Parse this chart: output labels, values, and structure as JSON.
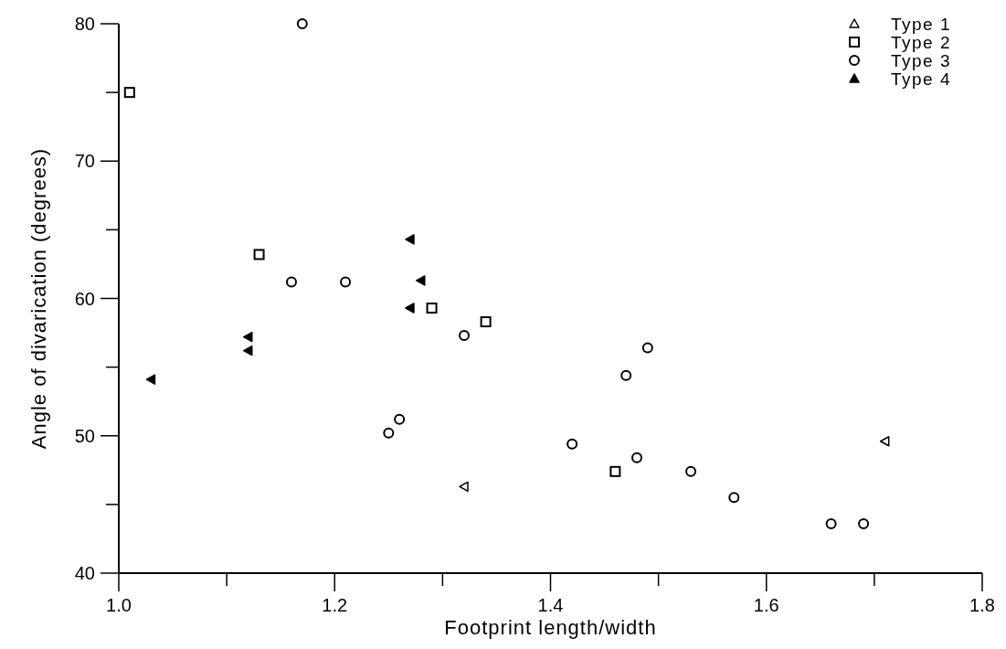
{
  "chart_data": {
    "type": "scatter",
    "xlabel": "Footprint length/width",
    "ylabel": "Angle of divarication (degrees)",
    "xlim": [
      1.0,
      1.8
    ],
    "ylim": [
      40,
      80
    ],
    "xticks": [
      {
        "value": 1.0,
        "label": "1.0"
      },
      {
        "value": 1.1,
        "label": null
      },
      {
        "value": 1.2,
        "label": "1.2"
      },
      {
        "value": 1.3,
        "label": null
      },
      {
        "value": 1.4,
        "label": "1.4"
      },
      {
        "value": 1.5,
        "label": null
      },
      {
        "value": 1.6,
        "label": "1.6"
      },
      {
        "value": 1.7,
        "label": null
      },
      {
        "value": 1.8,
        "label": "1.8"
      }
    ],
    "yticks": [
      40,
      {
        "value": 45,
        "label": null
      },
      50,
      {
        "value": 55,
        "label": null
      },
      60,
      {
        "value": 65,
        "label": null
      },
      70,
      {
        "value": 75,
        "label": null
      },
      80
    ],
    "grid": false,
    "legend": "top right",
    "series": [
      {
        "name": "Type 1",
        "color": "#000000",
        "marker": "triangle",
        "x": [
          1.32,
          1.71
        ],
        "values": [
          46.3,
          49.6
        ]
      },
      {
        "name": "Type 2",
        "color": "#000000",
        "marker": "square",
        "x": [
          1.01,
          1.13,
          1.29,
          1.34,
          1.46
        ],
        "values": [
          75,
          63.2,
          59.3,
          58.3,
          47.4
        ]
      },
      {
        "name": "Type 3",
        "color": "#000000",
        "marker": "circle",
        "x": [
          1.17,
          1.16,
          1.21,
          1.32,
          1.25,
          1.26,
          1.47,
          1.49,
          1.42,
          1.48,
          1.53,
          1.57,
          1.66,
          1.69
        ],
        "values": [
          80,
          61.2,
          61.2,
          57.3,
          50.2,
          51.2,
          54.4,
          56.4,
          49.4,
          48.4,
          47.4,
          45.5,
          43.6,
          43.6
        ]
      },
      {
        "name": "Type 4",
        "color": "#000000",
        "marker": "triangle",
        "x": [
          1.27,
          1.28,
          1.27,
          1.12,
          1.12,
          1.03
        ],
        "values": [
          64.3,
          61.3,
          59.3,
          57.2,
          56.2,
          54.1
        ]
      }
    ]
  }
}
